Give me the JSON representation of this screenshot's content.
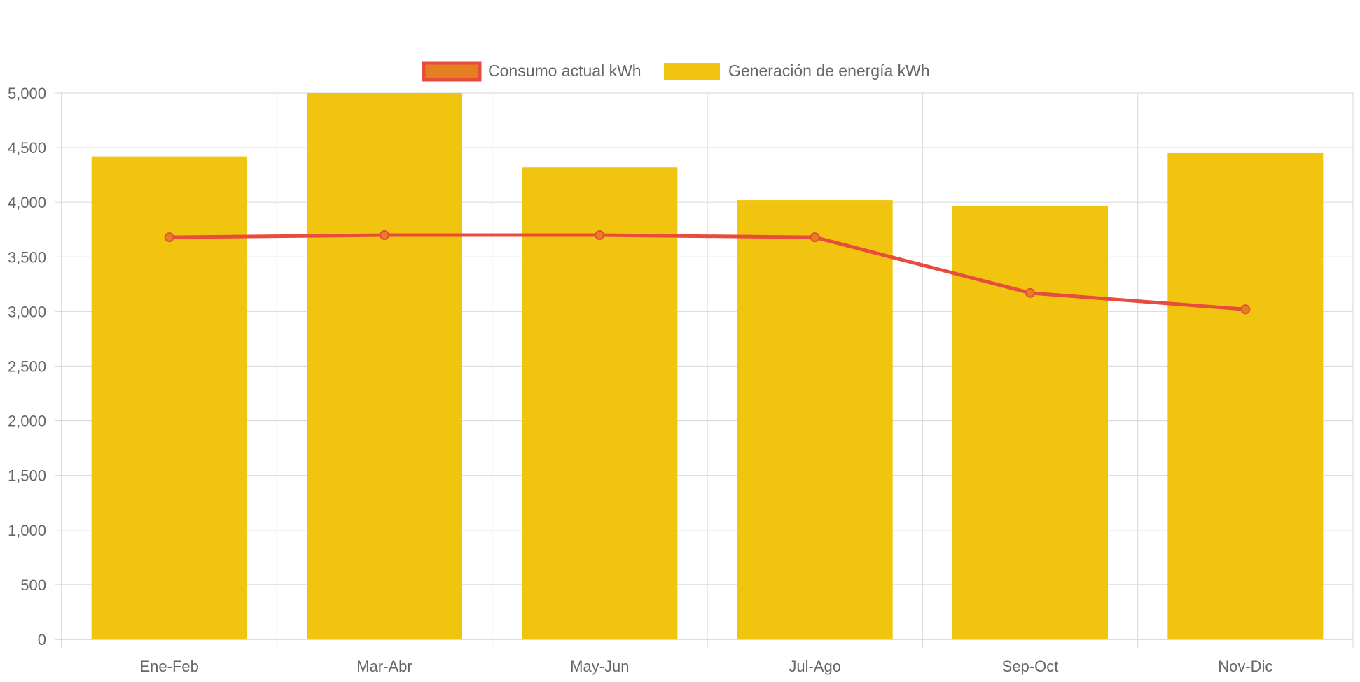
{
  "chart_data": {
    "type": "bar",
    "title": "",
    "xlabel": "",
    "ylabel": "",
    "categories": [
      "Ene-Feb",
      "Mar-Abr",
      "May-Jun",
      "Jul-Ago",
      "Sep-Oct",
      "Nov-Dic"
    ],
    "ylim": [
      0,
      5000
    ],
    "yticks": [
      "0",
      "500",
      "1,000",
      "1,500",
      "2,000",
      "2,500",
      "3,000",
      "3,500",
      "4,000",
      "4,500",
      "5,000"
    ],
    "grid": true,
    "legend_position": "top",
    "series": [
      {
        "name": "Consumo actual kWh",
        "type": "line",
        "color": "#e74c3c",
        "fill": "#e67e22",
        "values": [
          3680,
          3700,
          3700,
          3680,
          3170,
          3020
        ]
      },
      {
        "name": "Generación de energía kWh",
        "type": "bar",
        "color": "#f1c40f",
        "values": [
          4420,
          5000,
          4320,
          4020,
          3970,
          4450
        ]
      }
    ]
  }
}
